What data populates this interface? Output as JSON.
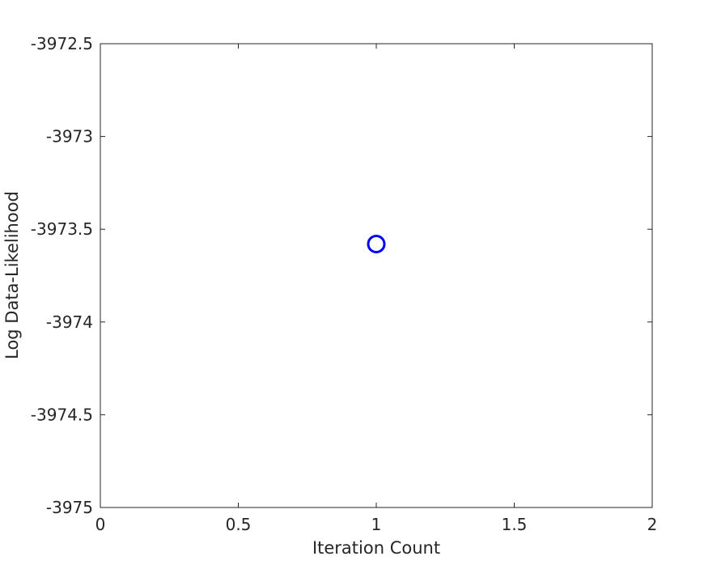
{
  "chart_data": {
    "type": "scatter",
    "title": "",
    "xlabel": "Iteration Count",
    "ylabel": "Log Data-Likelihood",
    "xlim": [
      0,
      2
    ],
    "ylim": [
      -3975,
      -3972.5
    ],
    "x_ticks": [
      0,
      0.5,
      1,
      1.5,
      2
    ],
    "x_tick_labels": [
      "0",
      "0.5",
      "1",
      "1.5",
      "2"
    ],
    "y_ticks": [
      -3975,
      -3974.5,
      -3974,
      -3973.5,
      -3973,
      -3972.5
    ],
    "y_tick_labels": [
      "-3975",
      "-3974.5",
      "-3974",
      "-3973.5",
      "-3973",
      "-3972.5"
    ],
    "grid": false,
    "legend": "none",
    "series": [
      {
        "marker": "circle",
        "color": "#0000ff",
        "points": [
          {
            "x": 1,
            "y": -3973.58
          }
        ]
      }
    ]
  }
}
